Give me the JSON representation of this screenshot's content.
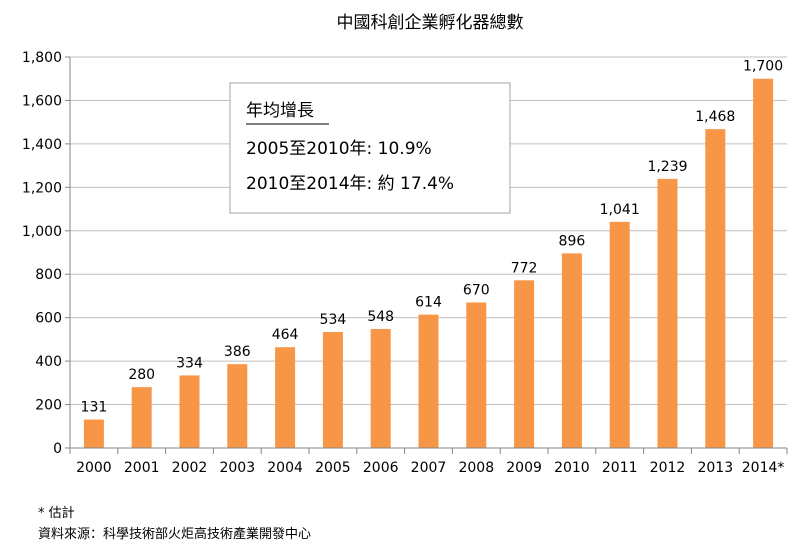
{
  "chart_data": {
    "type": "bar",
    "title": "中國科創企業孵化器總數",
    "xlabel": "",
    "ylabel": "",
    "categories": [
      "2000",
      "2001",
      "2002",
      "2003",
      "2004",
      "2005",
      "2006",
      "2007",
      "2008",
      "2009",
      "2010",
      "2011",
      "2012",
      "2013",
      "2014*"
    ],
    "series": [
      {
        "values": [
          131,
          280,
          334,
          386,
          464,
          534,
          548,
          614,
          670,
          772,
          896,
          1041,
          1239,
          1468,
          1700
        ],
        "color": "#f79646"
      }
    ],
    "data_labels": [
      "131",
      "280",
      "334",
      "386",
      "464",
      "534",
      "548",
      "614",
      "670",
      "772",
      "896",
      "1,041",
      "1,239",
      "1,468",
      "1,700"
    ],
    "ylim": [
      0,
      1800
    ],
    "yticks": [
      0,
      200,
      400,
      600,
      800,
      1000,
      1200,
      1400,
      1600,
      1800
    ],
    "ytick_labels": [
      "0",
      "200",
      "400",
      "600",
      "800",
      "1,000",
      "1,200",
      "1,400",
      "1,600",
      "1,800"
    ],
    "grid": true,
    "gridline_color": "#bfbfbf",
    "annotation": {
      "heading": "年均增長",
      "lines": [
        "2005至2010年: 10.9%",
        "2010至2014年: 約 17.4%"
      ]
    }
  },
  "footnotes": {
    "asterisk": "* 估計",
    "source": "資料來源：科學技術部火炬高技術產業開發中心"
  }
}
